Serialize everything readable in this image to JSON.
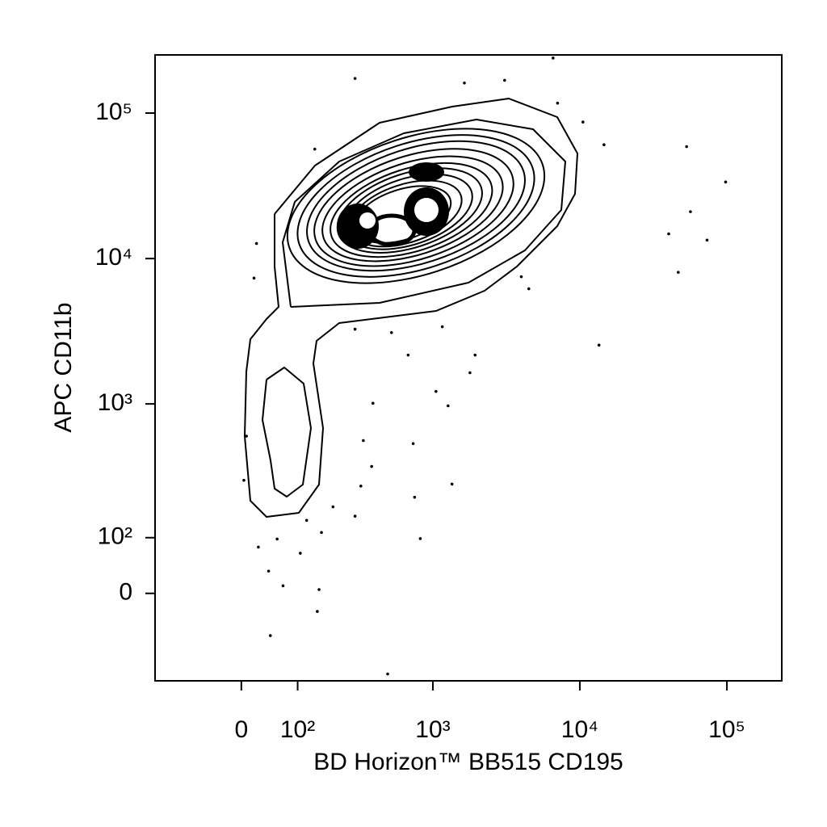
{
  "chart_data": {
    "type": "scatter",
    "x_label": "BD Horizon™ BB515 CD195",
    "y_label": "APC CD11b",
    "xscale": "biexponential",
    "yscale": "biexponential",
    "xlim": [
      -180,
      236000
    ],
    "ylim": [
      -187,
      251000
    ],
    "xticks": [
      0,
      {
        "value": 100,
        "label": "10²"
      },
      {
        "value": 1000,
        "label": "10³"
      },
      {
        "value": 10000,
        "label": "10⁴"
      },
      {
        "value": 100000,
        "label": "10⁵"
      }
    ],
    "yticks": [
      0,
      {
        "value": 100,
        "label": "10²"
      },
      {
        "value": 1000,
        "label": "10³"
      },
      {
        "value": 10000,
        "label": "10⁴"
      },
      {
        "value": 100000,
        "label": "10⁵"
      }
    ],
    "color": "#000000",
    "x": [
      288,
      6580,
      1640,
      3080,
      53200,
      98000,
      56500,
      40200,
      73300,
      46700,
      13500,
      14600,
      10500,
      7060,
      142,
      24,
      20,
      520,
      288,
      677,
      1160,
      1940,
      1790,
      1050,
      1270,
      386,
      330,
      733,
      378,
      1350,
      750,
      317,
      820,
      288,
      198,
      161,
      106,
      59,
      27,
      44,
      70,
      154,
      149,
      47,
      489,
      121,
      4,
      8,
      4500,
      4000
    ],
    "y": [
      173000,
      239000,
      161000,
      168000,
      58800,
      33600,
      21000,
      14800,
      13400,
      8040,
      2540,
      60600,
      86800,
      117000,
      56500,
      12700,
      7340,
      3100,
      3270,
      2170,
      3400,
      2170,
      1640,
      1220,
      970,
      1010,
      557,
      530,
      366,
      273,
      218,
      264,
      98,
      155,
      184,
      112,
      68,
      97,
      80,
      36,
      12,
      6,
      -29,
      -72,
      -165,
      143,
      291,
      598,
      6200,
      7500
    ]
  }
}
